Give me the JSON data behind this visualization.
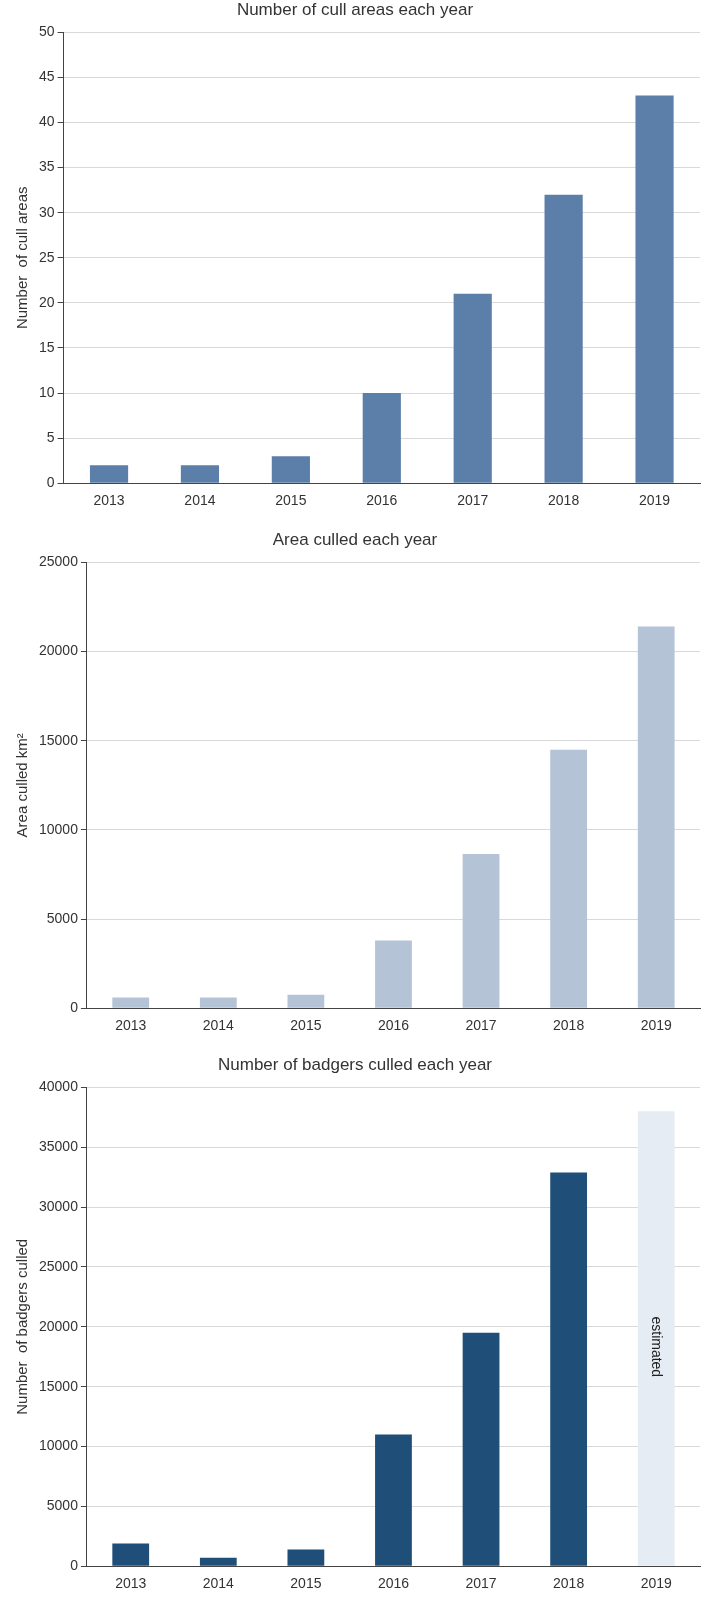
{
  "chart_data": [
    {
      "type": "bar",
      "title": "Number of cull areas each year",
      "ylabel": "Number  of cull areas",
      "categories": [
        "2013",
        "2014",
        "2015",
        "2016",
        "2017",
        "2018",
        "2019"
      ],
      "values": [
        2,
        2,
        3,
        10,
        21,
        32,
        43
      ],
      "color": "#5b7fa8",
      "ylim": [
        0,
        50
      ],
      "yticks": [
        0,
        5,
        10,
        15,
        20,
        25,
        30,
        35,
        40,
        45,
        50
      ],
      "grid": "y"
    },
    {
      "type": "bar",
      "title": "Area culled each year",
      "ylabel": "Area culled km²",
      "categories": [
        "2013",
        "2014",
        "2015",
        "2016",
        "2017",
        "2018",
        "2019"
      ],
      "values": [
        600,
        600,
        750,
        3800,
        8650,
        14500,
        21400
      ],
      "color": "#b4c3d6",
      "ylim": [
        0,
        25000
      ],
      "yticks": [
        0,
        5000,
        10000,
        15000,
        20000,
        25000
      ],
      "grid": "y"
    },
    {
      "type": "bar",
      "title": "Number of badgers culled each year",
      "ylabel": "Number  of badgers culled",
      "categories": [
        "2013",
        "2014",
        "2015",
        "2016",
        "2017",
        "2018",
        "2019"
      ],
      "values": [
        1900,
        700,
        1400,
        11000,
        19500,
        32900,
        38000
      ],
      "colors": [
        "#1f4e79",
        "#1f4e79",
        "#1f4e79",
        "#1f4e79",
        "#1f4e79",
        "#1f4e79",
        "#e6ecf4"
      ],
      "ylim": [
        0,
        40000
      ],
      "yticks": [
        0,
        5000,
        10000,
        15000,
        20000,
        25000,
        30000,
        35000,
        40000
      ],
      "grid": "y",
      "annotations": [
        "estimated"
      ]
    }
  ]
}
